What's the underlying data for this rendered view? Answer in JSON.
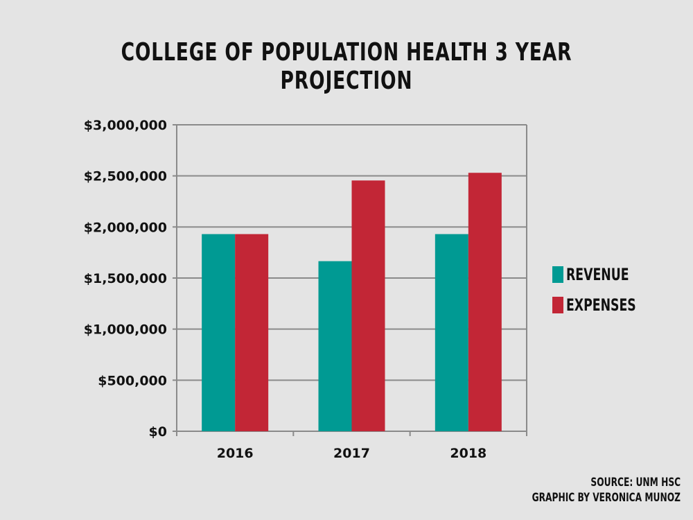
{
  "chart_data": {
    "type": "bar",
    "title": "COLLEGE OF POPULATION HEALTH 3 YEAR PROJECTION",
    "categories": [
      "2016",
      "2017",
      "2018"
    ],
    "series": [
      {
        "name": "REVENUE",
        "color": "#009a93",
        "values": [
          1930000,
          1665000,
          1930000
        ]
      },
      {
        "name": "EXPENSES",
        "color": "#c22636",
        "values": [
          1930000,
          2455000,
          2530000
        ]
      }
    ],
    "ylim": [
      0,
      3000000
    ],
    "yticks": [
      0,
      500000,
      1000000,
      1500000,
      2000000,
      2500000,
      3000000
    ],
    "ytick_labels": [
      "$0",
      "$500,000",
      "$1,000,000",
      "$1,500,000",
      "$2,000,000",
      "$2,500,000",
      "$3,000,000"
    ],
    "grid": true,
    "legend": "right",
    "xlabel": "",
    "ylabel": ""
  },
  "credits": {
    "source": "SOURCE: UNM HSC",
    "graphic": "GRAPHIC BY VERONICA MUNOZ"
  }
}
